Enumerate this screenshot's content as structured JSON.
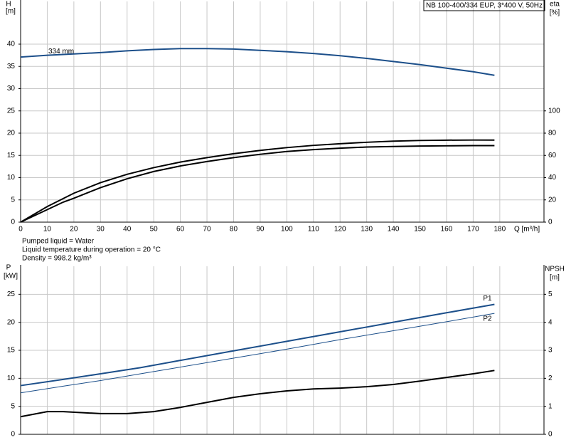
{
  "chart_data": [
    {
      "type": "line",
      "title": "NB 100-400/334 EUP, 3*400 V, 50Hz",
      "ylabel": "H",
      "yunit": "[m]",
      "y2label": "eta",
      "y2unit": "[%]",
      "xlabel": "Q [m³/h]",
      "xlim": [
        0,
        196.6
      ],
      "xticks": [
        0,
        10,
        20,
        30,
        40,
        50,
        60,
        70,
        80,
        90,
        100,
        110,
        120,
        130,
        140,
        150,
        160,
        170,
        180
      ],
      "ylim": [
        0,
        49.6
      ],
      "yticks": [
        0,
        5,
        10,
        15,
        20,
        25,
        30,
        35,
        40
      ],
      "y2lim": [
        0,
        198.4
      ],
      "y2ticks": [
        0,
        20,
        40,
        60,
        80,
        100
      ],
      "grid": true,
      "series": [
        {
          "name": "334 mm",
          "color": "#1c4f8a",
          "x": [
            0,
            10,
            20,
            30,
            40,
            50,
            60,
            70,
            80,
            90,
            100,
            110,
            120,
            130,
            140,
            150,
            160,
            170,
            178
          ],
          "values": [
            37.1,
            37.5,
            37.8,
            38.1,
            38.5,
            38.8,
            39.0,
            39.0,
            38.9,
            38.6,
            38.3,
            37.9,
            37.4,
            36.8,
            36.1,
            35.4,
            34.6,
            33.8,
            33.0
          ]
        },
        {
          "color": "#000000",
          "axis": "y2",
          "x": [
            0,
            10,
            20,
            30,
            40,
            50,
            60,
            70,
            80,
            90,
            100,
            110,
            120,
            130,
            140,
            150,
            160,
            170,
            178
          ],
          "values": [
            0,
            14,
            26,
            35.5,
            43,
            49,
            54,
            58,
            61.5,
            64.5,
            67,
            69,
            70.5,
            71.8,
            72.8,
            73.4,
            73.7,
            73.8,
            73.8
          ]
        },
        {
          "color": "#000000",
          "axis": "y2",
          "x": [
            0,
            16,
            20,
            30,
            40,
            50,
            60,
            70,
            80,
            90,
            100,
            110,
            120,
            130,
            140,
            150,
            160,
            170,
            178
          ],
          "values": [
            0,
            18,
            21.5,
            31,
            39,
            45.5,
            50.5,
            54.5,
            58,
            61,
            63.5,
            65.2,
            66.5,
            67.5,
            68,
            68.4,
            68.6,
            68.8,
            68.8
          ]
        }
      ]
    },
    {
      "type": "line",
      "ylabel": "P",
      "yunit": "[kW]",
      "y2label": "NPSH",
      "y2unit": "[m]",
      "xlim": [
        0,
        196.6
      ],
      "xticks": [
        0,
        10,
        20,
        30,
        40,
        50,
        60,
        70,
        80,
        90,
        100,
        110,
        120,
        130,
        140,
        150,
        160,
        170,
        180
      ],
      "ylim": [
        0,
        30
      ],
      "yticks": [
        0,
        5,
        10,
        15,
        20,
        25
      ],
      "y2lim": [
        0,
        6
      ],
      "y2ticks": [
        0,
        1,
        2,
        3,
        4,
        5
      ],
      "grid": true,
      "series": [
        {
          "name": "P1",
          "color": "#1c4f8a",
          "x": [
            0,
            16,
            30,
            45,
            60,
            80,
            100,
            120,
            140,
            160,
            178
          ],
          "values": [
            8.7,
            9.8,
            10.8,
            11.9,
            13.2,
            14.9,
            16.6,
            18.3,
            20.0,
            21.7,
            23.2
          ]
        },
        {
          "name": "P2",
          "color": "#1c4f8a",
          "x": [
            0,
            16,
            30,
            45,
            60,
            80,
            100,
            120,
            140,
            160,
            178
          ],
          "values": [
            7.4,
            8.6,
            9.6,
            10.8,
            12.0,
            13.6,
            15.2,
            16.9,
            18.5,
            20.1,
            21.6
          ]
        },
        {
          "color": "#000000",
          "axis": "y2",
          "x": [
            0,
            10,
            16,
            30,
            40,
            50,
            60,
            70,
            80,
            90,
            100,
            110,
            120,
            130,
            140,
            150,
            160,
            170,
            178
          ],
          "values": [
            0.63,
            0.81,
            0.81,
            0.74,
            0.74,
            0.81,
            0.96,
            1.14,
            1.32,
            1.45,
            1.55,
            1.62,
            1.65,
            1.7,
            1.78,
            1.9,
            2.03,
            2.16,
            2.28
          ]
        }
      ]
    }
  ],
  "info": [
    "Pumped liquid = Water",
    "Liquid temperature during operation = 20 °C",
    "Density = 998.2 kg/m³"
  ]
}
